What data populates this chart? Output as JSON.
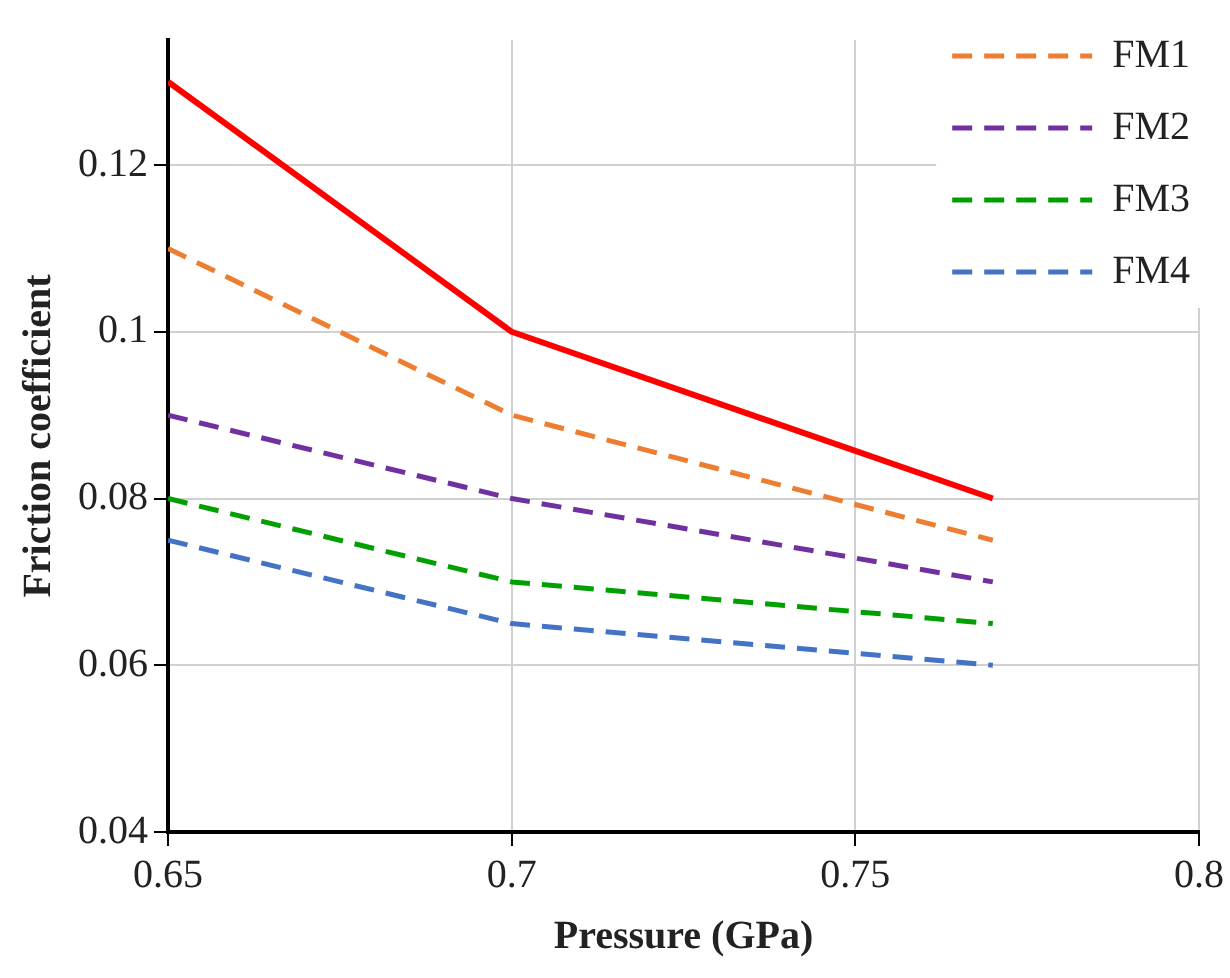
{
  "chart_data": {
    "type": "line",
    "xlabel": "Pressure (GPa)",
    "ylabel": "Friction coefficient",
    "x": [
      0.65,
      0.7,
      0.77
    ],
    "series": [
      {
        "color": "#ff0000",
        "line_style": "solid",
        "values": [
          0.13,
          0.1,
          0.08
        ]
      },
      {
        "name": "FM1",
        "color": "#ed7d31",
        "line_style": "dashed",
        "values": [
          0.11,
          0.09,
          0.075
        ]
      },
      {
        "name": "FM2",
        "color": "#7030a0",
        "line_style": "dashed",
        "values": [
          0.09,
          0.08,
          0.07
        ]
      },
      {
        "name": "FM3",
        "color": "#00a000",
        "line_style": "dashed",
        "values": [
          0.08,
          0.07,
          0.065
        ]
      },
      {
        "name": "FM4",
        "color": "#4472c4",
        "line_style": "dashed",
        "values": [
          0.075,
          0.065,
          0.06
        ]
      }
    ],
    "xlim": [
      0.65,
      0.8
    ],
    "xticks": [
      0.65,
      0.7,
      0.75,
      0.8
    ],
    "ylim": [
      0.04,
      0.135
    ],
    "yticks": [
      0.04,
      0.06,
      0.08,
      0.1,
      0.12
    ],
    "grid": true,
    "legend": "top right",
    "marker": "none"
  }
}
